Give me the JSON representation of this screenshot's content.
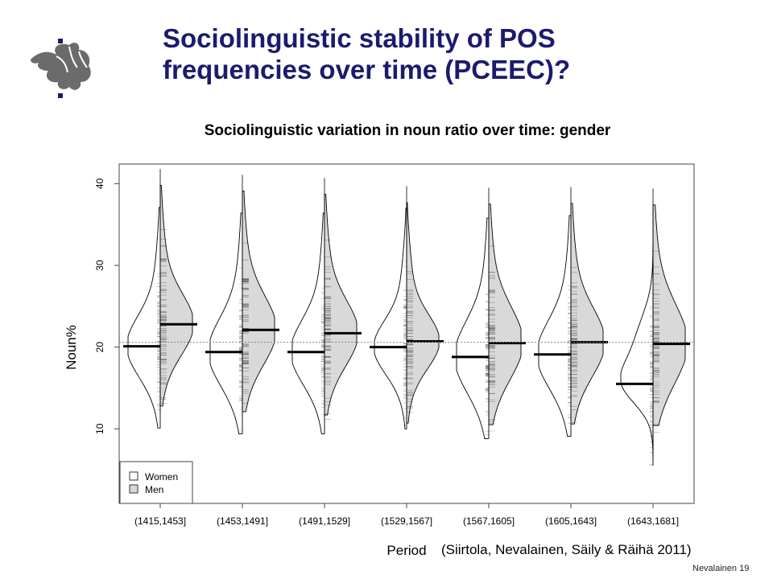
{
  "slide": {
    "title_line1": "Sociolinguistic stability of POS",
    "title_line2": "frequencies over time (PCEEC)?",
    "citation": "(Siirtola, Nevalainen, Säily & Räihä 2011)",
    "footer": "Nevalainen 19",
    "title_color": "#1b1b6e"
  },
  "logo": {
    "icon": "university-of-helsinki-flame-icon",
    "color": "#666666"
  },
  "chart_data": {
    "type": "beanplot",
    "title": "Sociolinguistic variation in noun ratio over time: gender",
    "xlabel": "Period",
    "ylabel": "Noun%",
    "categories": [
      "(1415,1453]",
      "(1453,1491]",
      "(1491,1529]",
      "(1529,1567]",
      "(1567,1605]",
      "(1605,1643]",
      "(1643,1681]"
    ],
    "ylim": [
      2,
      42
    ],
    "yticks": [
      10,
      20,
      30,
      40
    ],
    "overall_mean": 20.6,
    "legend": {
      "position": "bottom-left",
      "entries": [
        {
          "label": "Women",
          "fill": "#ffffff"
        },
        {
          "label": "Men",
          "fill": "#d9d9d9"
        }
      ]
    },
    "series": [
      {
        "name": "Women",
        "side": "left",
        "fill": "#ffffff",
        "means": [
          20.1,
          19.4,
          19.4,
          20.0,
          18.8,
          19.1,
          15.5
        ]
      },
      {
        "name": "Men",
        "side": "right",
        "fill": "#d9d9d9",
        "means": [
          22.8,
          22.1,
          21.7,
          20.7,
          20.5,
          20.6,
          20.4
        ]
      }
    ]
  }
}
